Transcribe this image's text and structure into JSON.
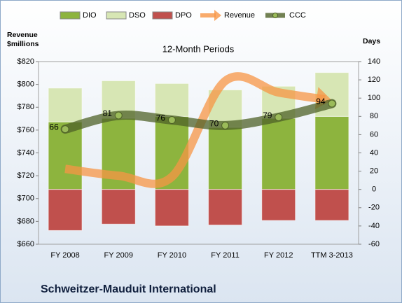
{
  "chart_data": {
    "type": "combo",
    "title": "12-Month Periods",
    "footer": "Schweitzer-Mauduit International",
    "y_label": "Revenue $millions",
    "y2_label": "Days",
    "categories": [
      "FY 2008",
      "FY 2009",
      "FY 2010",
      "FY 2011",
      "FY 2012",
      "TTM 3-2013"
    ],
    "ylim": [
      660,
      820
    ],
    "yticks": [
      {
        "value": 660,
        "label": "$660"
      },
      {
        "value": 680,
        "label": "$680"
      },
      {
        "value": 700,
        "label": "$700"
      },
      {
        "value": 720,
        "label": "$720"
      },
      {
        "value": 740,
        "label": "$740"
      },
      {
        "value": 760,
        "label": "$760"
      },
      {
        "value": 780,
        "label": "$780"
      },
      {
        "value": 800,
        "label": "$800"
      },
      {
        "value": 820,
        "label": "$820"
      }
    ],
    "y2lim": [
      -60,
      140
    ],
    "y2ticks": [
      -60,
      -40,
      -20,
      0,
      20,
      40,
      60,
      80,
      100,
      120,
      140
    ],
    "series": [
      {
        "name": "DIO",
        "kind": "bar",
        "axis": "y2",
        "color": "#8db43e",
        "values": [
          74,
          78,
          80,
          68,
          78,
          80
        ]
      },
      {
        "name": "DSO",
        "kind": "bar",
        "axis": "y2",
        "color": "#d7e6b4",
        "values": [
          37,
          41,
          36,
          41,
          35,
          48
        ]
      },
      {
        "name": "DPO",
        "kind": "bar",
        "axis": "y2",
        "color": "#c0504d",
        "values": [
          -45,
          -38,
          -40,
          -39,
          -34,
          -34
        ]
      },
      {
        "name": "Revenue",
        "kind": "arrow",
        "axis": "y",
        "color": "#f79646",
        "values": [
          726,
          720,
          719,
          803,
          793,
          786
        ]
      },
      {
        "name": "CCC",
        "kind": "line",
        "axis": "y2",
        "color": "#4f6228",
        "values": [
          66,
          81,
          76,
          70,
          79,
          94
        ]
      }
    ]
  }
}
